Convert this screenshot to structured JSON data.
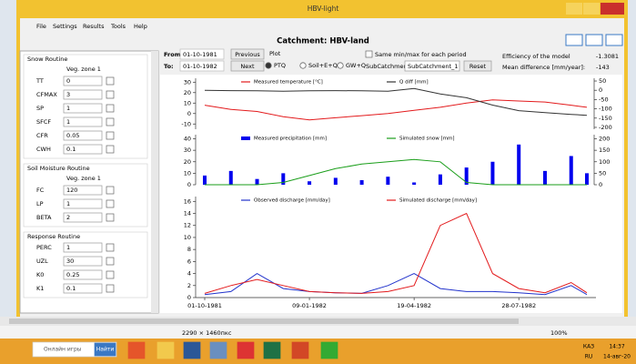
{
  "window": {
    "title": "HBV-light",
    "menu": [
      "File",
      "Settings",
      "Results",
      "Tools",
      "Help"
    ],
    "header": "Catchment: HBV-land"
  },
  "parameters": {
    "groups": [
      {
        "title": "Snow Routine",
        "zone": "Veg. zone 1",
        "params": [
          {
            "name": "TT",
            "value": 0
          },
          {
            "name": "CFMAX",
            "value": 3
          },
          {
            "name": "SP",
            "value": 1
          },
          {
            "name": "SFCF",
            "value": 1
          },
          {
            "name": "CFR",
            "value": 0.05
          },
          {
            "name": "CWH",
            "value": 0.1
          }
        ]
      },
      {
        "title": "Soil Moisture Routine",
        "zone": "Veg. zone 1",
        "params": [
          {
            "name": "FC",
            "value": 120
          },
          {
            "name": "LP",
            "value": 1
          },
          {
            "name": "BETA",
            "value": 2
          }
        ]
      },
      {
        "title": "Response Routine",
        "params": [
          {
            "name": "PERC",
            "value": 1
          },
          {
            "name": "UZL",
            "value": 30
          },
          {
            "name": "K0",
            "value": 0.25
          },
          {
            "name": "K1",
            "value": 0.1
          }
        ]
      }
    ]
  },
  "controls": {
    "from_label": "From:",
    "from": "01-10-1981",
    "to_label": "To:",
    "to": "01-10-1982",
    "previous": "Previous",
    "next": "Next",
    "plot_label": "Plot",
    "plot_options": [
      "PTQ",
      "Soil+E+Q",
      "GW+Q"
    ],
    "same_minmax": "Same min/max for each period",
    "subcatchment_label": "SubCatchment:",
    "subcatchment": "SubCatchment_1",
    "reset": "Reset"
  },
  "stats": {
    "efficiency_label": "Efficiency of the model",
    "efficiency": -1.3081,
    "mean_diff_label": "Mean difference [mm/year]:",
    "mean_diff": -143
  },
  "status": {
    "size": "2290 × 1460пкс",
    "zoom": "100%"
  },
  "taskbar": {
    "search_placeholder": "Онлайн игры",
    "search_button": "Найти",
    "lang": "КАЗ",
    "locale": "RU",
    "time": "14:37",
    "date": "14-авг-20"
  },
  "chart_data": [
    {
      "type": "line",
      "x": [
        "01-10-1981",
        "26-10-1981",
        "20-11-1981",
        "15-12-1981",
        "09-01-1982",
        "03-02-1982",
        "28-02-1982",
        "25-03-1982",
        "19-04-1982",
        "14-05-1982",
        "08-06-1982",
        "03-07-1982",
        "28-07-1982",
        "22-08-1982",
        "16-09-1982",
        "01-10-1982"
      ],
      "xlim": [
        "01-10-1981",
        "01-10-1982"
      ],
      "series": [
        {
          "name": "Measured temperature [°C]",
          "color": "#e31a1c",
          "values": [
            8,
            4,
            2,
            -3,
            -6,
            -4,
            -2,
            0,
            3,
            6,
            10,
            13,
            12,
            11,
            8,
            6
          ]
        },
        {
          "name": "Q diff [mm]",
          "color": "#333333",
          "axis": "y2",
          "values": [
            0,
            -2,
            -3,
            -5,
            -3,
            -2,
            -3,
            -5,
            10,
            -20,
            -40,
            -80,
            -110,
            -120,
            -130,
            -135
          ]
        }
      ],
      "ylim": [
        -15,
        32
      ],
      "yticks": [
        -10,
        0,
        10,
        20,
        30
      ],
      "y2lim": [
        -210,
        55
      ],
      "y2ticks": [
        -200,
        -150,
        -100,
        -50,
        0,
        50
      ]
    },
    {
      "type": "bar",
      "x": [
        "01-10-1981",
        "26-10-1981",
        "20-11-1981",
        "15-12-1981",
        "09-01-1982",
        "03-02-1982",
        "28-02-1982",
        "25-03-1982",
        "19-04-1982",
        "14-05-1982",
        "08-06-1982",
        "03-07-1982",
        "28-07-1982",
        "22-08-1982",
        "16-09-1982",
        "01-10-1982"
      ],
      "xlim": [
        "01-10-1981",
        "01-10-1982"
      ],
      "series": [
        {
          "name": "Measured precipitation [mm]",
          "type": "bar",
          "color": "#0000ee",
          "values": [
            8,
            12,
            5,
            10,
            3,
            6,
            4,
            7,
            2,
            9,
            15,
            20,
            35,
            12,
            25,
            10
          ]
        },
        {
          "name": "Simulated snow [mm]",
          "type": "line",
          "color": "#1a9e1a",
          "axis": "y2",
          "values": [
            0,
            0,
            0,
            10,
            40,
            70,
            90,
            100,
            110,
            100,
            10,
            0,
            0,
            0,
            0,
            0
          ]
        }
      ],
      "ylim": [
        0,
        42
      ],
      "yticks": [
        0,
        10,
        20,
        30,
        40
      ],
      "y2lim": [
        0,
        210
      ],
      "y2ticks": [
        0,
        50,
        100,
        150,
        200
      ]
    },
    {
      "type": "line",
      "x": [
        "01-10-1981",
        "26-10-1981",
        "20-11-1981",
        "15-12-1981",
        "09-01-1982",
        "03-02-1982",
        "28-02-1982",
        "25-03-1982",
        "19-04-1982",
        "14-05-1982",
        "08-06-1982",
        "03-07-1982",
        "28-07-1982",
        "22-08-1982",
        "16-09-1982",
        "01-10-1982"
      ],
      "xlim": [
        "01-10-1981",
        "01-10-1982"
      ],
      "series": [
        {
          "name": "Observed discharge [mm/day]",
          "color": "#2233cc",
          "values": [
            0.5,
            1,
            4,
            1.5,
            1,
            0.8,
            0.7,
            2,
            4,
            1.5,
            1,
            1,
            0.8,
            0.5,
            2,
            0.5
          ]
        },
        {
          "name": "Simulated discharge [mm/day]",
          "color": "#e31a1c",
          "values": [
            0.7,
            2,
            3,
            2,
            1,
            0.8,
            0.7,
            1,
            2,
            12,
            14,
            4,
            1.5,
            0.8,
            2.5,
            0.8
          ]
        }
      ],
      "ylim": [
        0,
        16.5
      ],
      "yticks": [
        0,
        2,
        4,
        6,
        8,
        10,
        12,
        14,
        16
      ],
      "xticks": [
        "01-10-1981",
        "09-01-1982",
        "19-04-1982",
        "28-07-1982"
      ]
    }
  ]
}
